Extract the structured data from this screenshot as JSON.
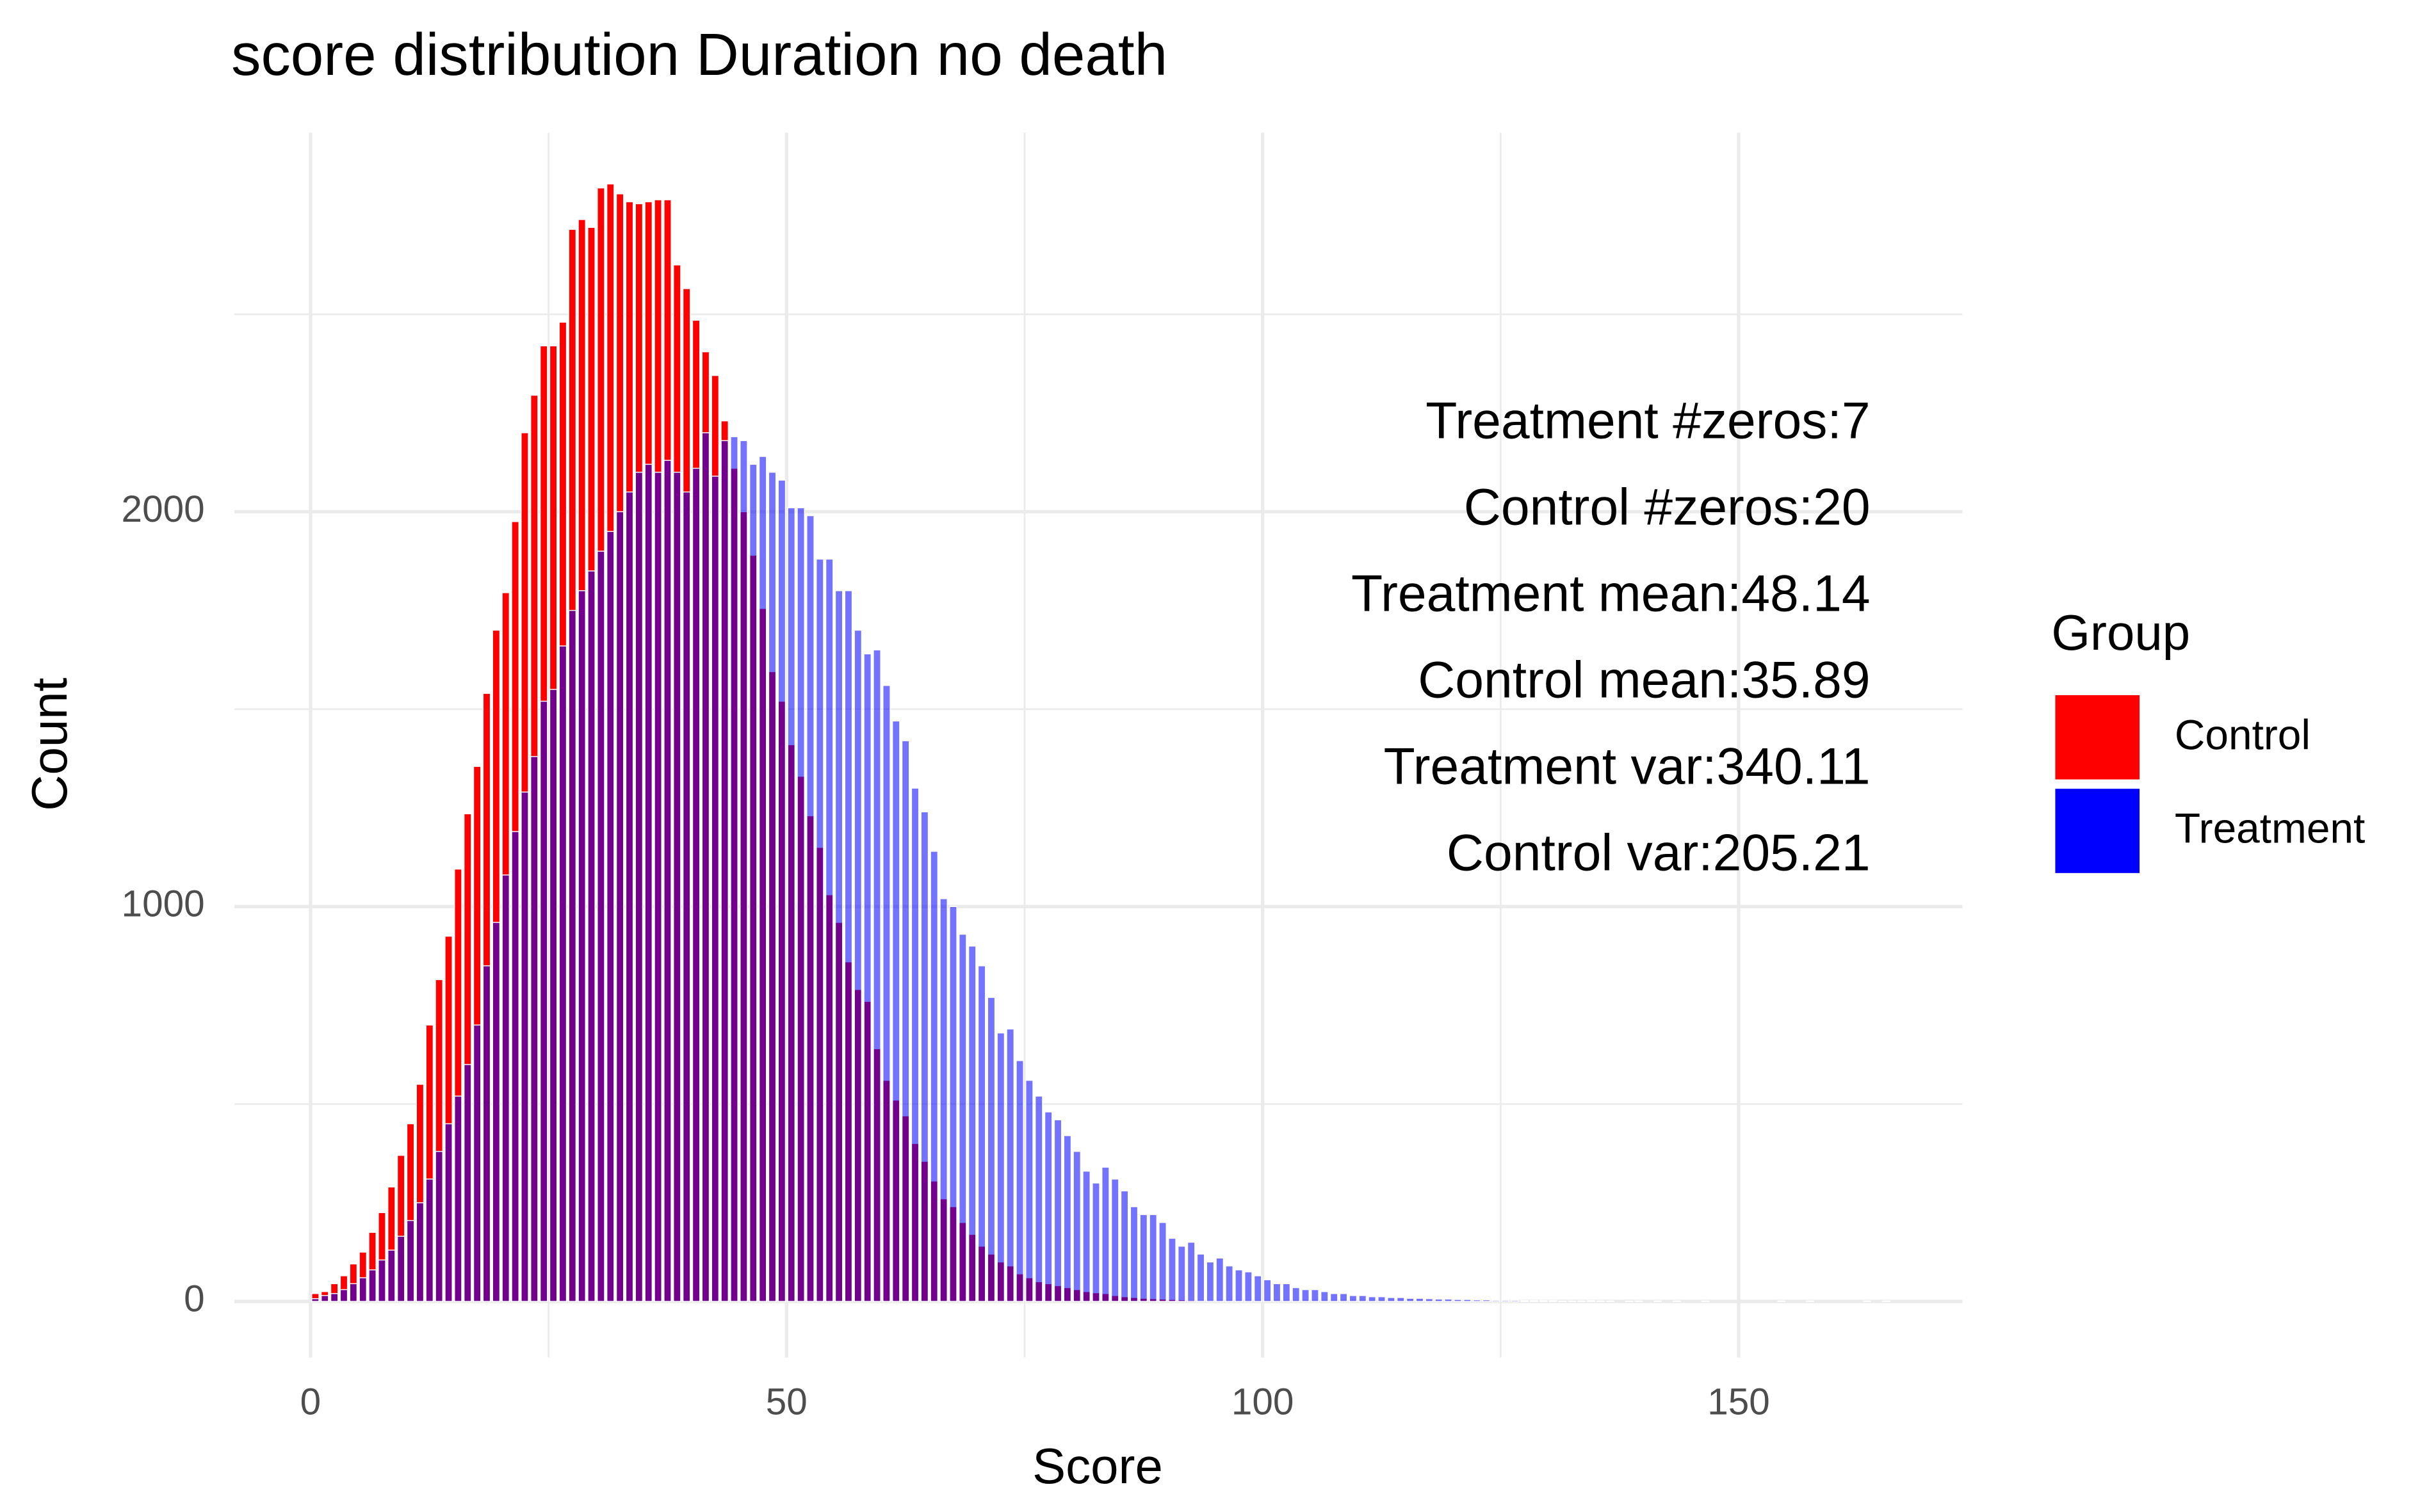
{
  "chart_data": {
    "type": "histogram",
    "title": "score distribution Duration no death",
    "x_label": "Score",
    "y_label": "Count",
    "legend_title": "Group",
    "legend_position": "right",
    "grid": true,
    "xlim": [
      -8,
      173.5
    ],
    "ylim": [
      -142,
      2960
    ],
    "xticks": [
      0,
      50,
      100,
      150
    ],
    "xminorticks": [
      25,
      75,
      125
    ],
    "yticks": [
      0,
      1000,
      2000
    ],
    "yminorticks": [
      500,
      1500,
      2500
    ],
    "annotations": [
      "Treatment #zeros:7",
      "Control #zeros:20",
      "Treatment mean:48.14",
      "Control mean:35.89",
      "Treatment var:340.11",
      "Control var:205.21"
    ],
    "bins": [
      0,
      1,
      2,
      3,
      4,
      5,
      6,
      7,
      8,
      9,
      10,
      11,
      12,
      13,
      14,
      15,
      16,
      17,
      18,
      19,
      20,
      21,
      22,
      23,
      24,
      25,
      26,
      27,
      28,
      29,
      30,
      31,
      32,
      33,
      34,
      35,
      36,
      37,
      38,
      39,
      40,
      41,
      42,
      43,
      44,
      45,
      46,
      47,
      48,
      49,
      50,
      51,
      52,
      53,
      54,
      55,
      56,
      57,
      58,
      59,
      60,
      61,
      62,
      63,
      64,
      65,
      66,
      67,
      68,
      69,
      70,
      71,
      72,
      73,
      74,
      75,
      76,
      77,
      78,
      79,
      80,
      81,
      82,
      83,
      84,
      85,
      86,
      87,
      88,
      89,
      90,
      91,
      92,
      93,
      94,
      95,
      96,
      97,
      98,
      99,
      100,
      101,
      102,
      103,
      104,
      105,
      106,
      107,
      108,
      109,
      110,
      111,
      112,
      113,
      114,
      115,
      116,
      117,
      118,
      119,
      120,
      121,
      122,
      123,
      124,
      125,
      126,
      127,
      128,
      129,
      130,
      131,
      132,
      133,
      134,
      135,
      136,
      137,
      138,
      139,
      140,
      141,
      142,
      143,
      144,
      145,
      146,
      147,
      148,
      149,
      150,
      151,
      152,
      153,
      154,
      155,
      156,
      157,
      158,
      159,
      160,
      161,
      162,
      163,
      164,
      165,
      166
    ],
    "series": [
      {
        "name": "Control",
        "color": "#ff0000",
        "values": [
          20,
          25,
          45,
          65,
          95,
          125,
          175,
          225,
          290,
          370,
          450,
          550,
          700,
          815,
          925,
          1095,
          1235,
          1355,
          1540,
          1700,
          1795,
          1975,
          2200,
          2295,
          2420,
          2420,
          2480,
          2715,
          2740,
          2720,
          2820,
          2830,
          2805,
          2785,
          2780,
          2785,
          2790,
          2790,
          2625,
          2565,
          2485,
          2405,
          2345,
          2230,
          2110,
          2000,
          1890,
          1755,
          1595,
          1520,
          1410,
          1330,
          1230,
          1150,
          1030,
          960,
          860,
          790,
          760,
          640,
          560,
          510,
          470,
          400,
          355,
          305,
          260,
          240,
          200,
          170,
          140,
          120,
          100,
          90,
          70,
          60,
          50,
          45,
          40,
          35,
          30,
          25,
          22,
          20,
          15,
          12,
          10,
          8,
          7,
          6,
          5,
          4,
          3,
          2,
          2,
          1,
          1,
          1,
          0,
          0,
          0,
          0,
          0,
          0,
          0,
          0,
          0,
          0,
          0,
          0,
          0,
          0,
          0,
          0,
          0,
          0,
          0,
          0,
          0,
          0,
          0,
          0,
          0,
          0,
          0,
          0,
          0,
          0,
          0,
          0,
          0,
          0,
          0,
          0,
          0,
          0,
          0,
          0,
          0,
          0,
          0,
          0,
          0,
          0,
          0,
          0,
          0,
          0,
          0,
          0,
          0,
          0,
          0,
          0,
          0,
          0,
          0,
          0,
          0,
          0,
          0,
          0,
          0,
          0,
          0,
          0
        ]
      },
      {
        "name": "Treatment",
        "color": "#0000ff",
        "values": [
          7,
          15,
          20,
          30,
          45,
          60,
          80,
          105,
          130,
          165,
          205,
          250,
          310,
          380,
          450,
          520,
          600,
          700,
          850,
          960,
          1080,
          1190,
          1290,
          1380,
          1520,
          1550,
          1660,
          1750,
          1800,
          1850,
          1900,
          1950,
          2000,
          2050,
          2100,
          2120,
          2100,
          2130,
          2100,
          2050,
          2110,
          2200,
          2090,
          2180,
          2190,
          2180,
          2120,
          2140,
          2100,
          2080,
          2010,
          2010,
          1990,
          1880,
          1880,
          1800,
          1800,
          1700,
          1640,
          1650,
          1560,
          1470,
          1420,
          1300,
          1240,
          1140,
          1020,
          1000,
          930,
          900,
          850,
          770,
          680,
          690,
          610,
          560,
          520,
          480,
          460,
          420,
          380,
          330,
          300,
          340,
          310,
          280,
          240,
          220,
          220,
          200,
          160,
          140,
          150,
          120,
          100,
          110,
          90,
          80,
          75,
          65,
          55,
          45,
          45,
          35,
          30,
          30,
          25,
          20,
          20,
          15,
          15,
          12,
          12,
          10,
          10,
          8,
          8,
          7,
          6,
          6,
          5,
          5,
          4,
          4,
          3,
          3,
          3,
          2,
          2,
          2,
          2,
          1,
          1,
          1,
          2,
          1,
          1,
          0,
          1,
          1,
          0,
          1,
          0,
          1,
          0,
          0,
          1,
          0,
          0,
          0,
          0,
          0,
          0,
          0,
          1,
          0,
          0,
          1,
          0,
          0,
          0,
          0,
          0,
          1,
          0,
          1
        ]
      }
    ]
  }
}
